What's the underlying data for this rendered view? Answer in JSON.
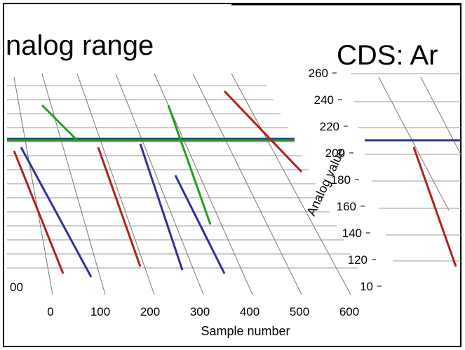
{
  "left_panel": {
    "title": "nalog range",
    "edge_tick": "00"
  },
  "right_panel": {
    "title": "CDS: Ar",
    "y_axis_label": "Analog value",
    "y_ticks": [
      "260",
      "240",
      "220",
      "200",
      "180",
      "160",
      "140",
      "120",
      "10"
    ]
  },
  "x_axis": {
    "label": "Sample number",
    "ticks": [
      "0",
      "100",
      "200",
      "300",
      "400",
      "500",
      "600"
    ]
  }
}
